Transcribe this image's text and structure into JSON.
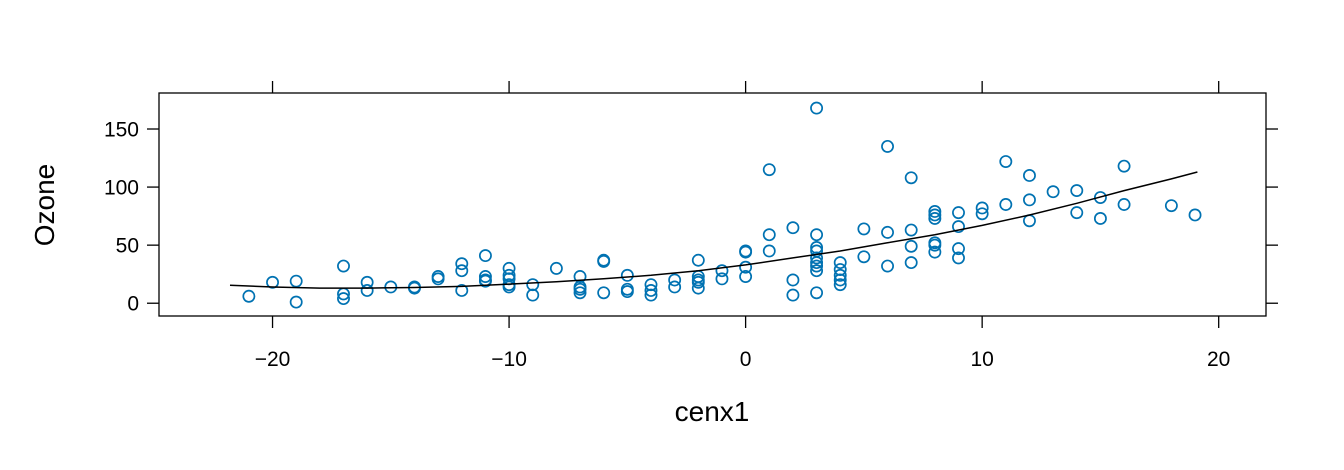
{
  "chart_data": {
    "type": "scatter",
    "xlabel": "cenx1",
    "ylabel": "Ozone",
    "xlim": [
      -24.8,
      22.0
    ],
    "ylim": [
      -11,
      181
    ],
    "xticks": [
      -20,
      -10,
      0,
      10,
      20
    ],
    "yticks": [
      0,
      50,
      100,
      150
    ],
    "grid": false,
    "point_color": "#0072B2",
    "line_color": "#000000",
    "series": [
      {
        "kind": "points",
        "points": [
          [
            -21,
            6
          ],
          [
            -20,
            18
          ],
          [
            -19,
            19
          ],
          [
            -19,
            1
          ],
          [
            -17,
            32
          ],
          [
            -17,
            8
          ],
          [
            -17,
            4
          ],
          [
            -16,
            18
          ],
          [
            -16,
            11
          ],
          [
            -15,
            14
          ],
          [
            -14,
            14
          ],
          [
            -14,
            13
          ],
          [
            -13,
            23
          ],
          [
            -13,
            21
          ],
          [
            -12,
            34
          ],
          [
            -12,
            28
          ],
          [
            -12,
            11
          ],
          [
            -11,
            41
          ],
          [
            -11,
            23
          ],
          [
            -11,
            20
          ],
          [
            -11,
            19
          ],
          [
            -10,
            30
          ],
          [
            -10,
            24
          ],
          [
            -10,
            21
          ],
          [
            -10,
            16
          ],
          [
            -10,
            14
          ],
          [
            -9,
            16
          ],
          [
            -9,
            7
          ],
          [
            -8,
            30
          ],
          [
            -7,
            23
          ],
          [
            -7,
            14
          ],
          [
            -7,
            9
          ],
          [
            -7,
            12
          ],
          [
            -6,
            37
          ],
          [
            -6,
            36
          ],
          [
            -6,
            9
          ],
          [
            -5,
            24
          ],
          [
            -5,
            12
          ],
          [
            -5,
            10
          ],
          [
            -4,
            16
          ],
          [
            -4,
            11
          ],
          [
            -4,
            7
          ],
          [
            -3,
            20
          ],
          [
            -3,
            14
          ],
          [
            -2,
            37
          ],
          [
            -2,
            23
          ],
          [
            -2,
            20
          ],
          [
            -2,
            18
          ],
          [
            -2,
            13
          ],
          [
            -1,
            28
          ],
          [
            -1,
            21
          ],
          [
            0,
            45
          ],
          [
            0,
            44
          ],
          [
            0,
            31
          ],
          [
            0,
            23
          ],
          [
            1,
            115
          ],
          [
            1,
            59
          ],
          [
            1,
            45
          ],
          [
            2,
            65
          ],
          [
            2,
            20
          ],
          [
            2,
            7
          ],
          [
            3,
            168
          ],
          [
            3,
            59
          ],
          [
            3,
            48
          ],
          [
            3,
            45
          ],
          [
            3,
            39
          ],
          [
            3,
            35
          ],
          [
            3,
            32
          ],
          [
            3,
            28
          ],
          [
            3,
            9
          ],
          [
            4,
            35
          ],
          [
            4,
            29
          ],
          [
            4,
            24
          ],
          [
            4,
            20
          ],
          [
            4,
            16
          ],
          [
            5,
            64
          ],
          [
            5,
            40
          ],
          [
            6,
            135
          ],
          [
            6,
            61
          ],
          [
            6,
            32
          ],
          [
            7,
            108
          ],
          [
            7,
            63
          ],
          [
            7,
            49
          ],
          [
            7,
            35
          ],
          [
            8,
            79
          ],
          [
            8,
            76
          ],
          [
            8,
            73
          ],
          [
            8,
            52
          ],
          [
            8,
            50
          ],
          [
            8,
            44
          ],
          [
            9,
            78
          ],
          [
            9,
            66
          ],
          [
            9,
            47
          ],
          [
            9,
            39
          ],
          [
            10,
            82
          ],
          [
            10,
            77
          ],
          [
            11,
            122
          ],
          [
            11,
            85
          ],
          [
            12,
            110
          ],
          [
            12,
            89
          ],
          [
            12,
            71
          ],
          [
            13,
            96
          ],
          [
            14,
            97
          ],
          [
            14,
            78
          ],
          [
            15,
            91
          ],
          [
            15,
            73
          ],
          [
            16,
            118
          ],
          [
            16,
            85
          ],
          [
            18,
            84
          ],
          [
            19,
            76
          ]
        ]
      },
      {
        "kind": "smooth-line",
        "points": [
          [
            -21.8,
            15.5
          ],
          [
            -20,
            14
          ],
          [
            -18,
            13
          ],
          [
            -16,
            13
          ],
          [
            -14,
            13.5
          ],
          [
            -12,
            14.5
          ],
          [
            -10,
            16.5
          ],
          [
            -8,
            18.5
          ],
          [
            -6,
            21
          ],
          [
            -4,
            24
          ],
          [
            -2,
            28
          ],
          [
            0,
            33
          ],
          [
            2,
            39
          ],
          [
            4,
            45
          ],
          [
            6,
            52
          ],
          [
            8,
            59
          ],
          [
            10,
            67
          ],
          [
            12,
            76
          ],
          [
            14,
            86
          ],
          [
            16,
            97
          ],
          [
            18,
            107
          ],
          [
            19.1,
            113
          ]
        ]
      }
    ]
  }
}
